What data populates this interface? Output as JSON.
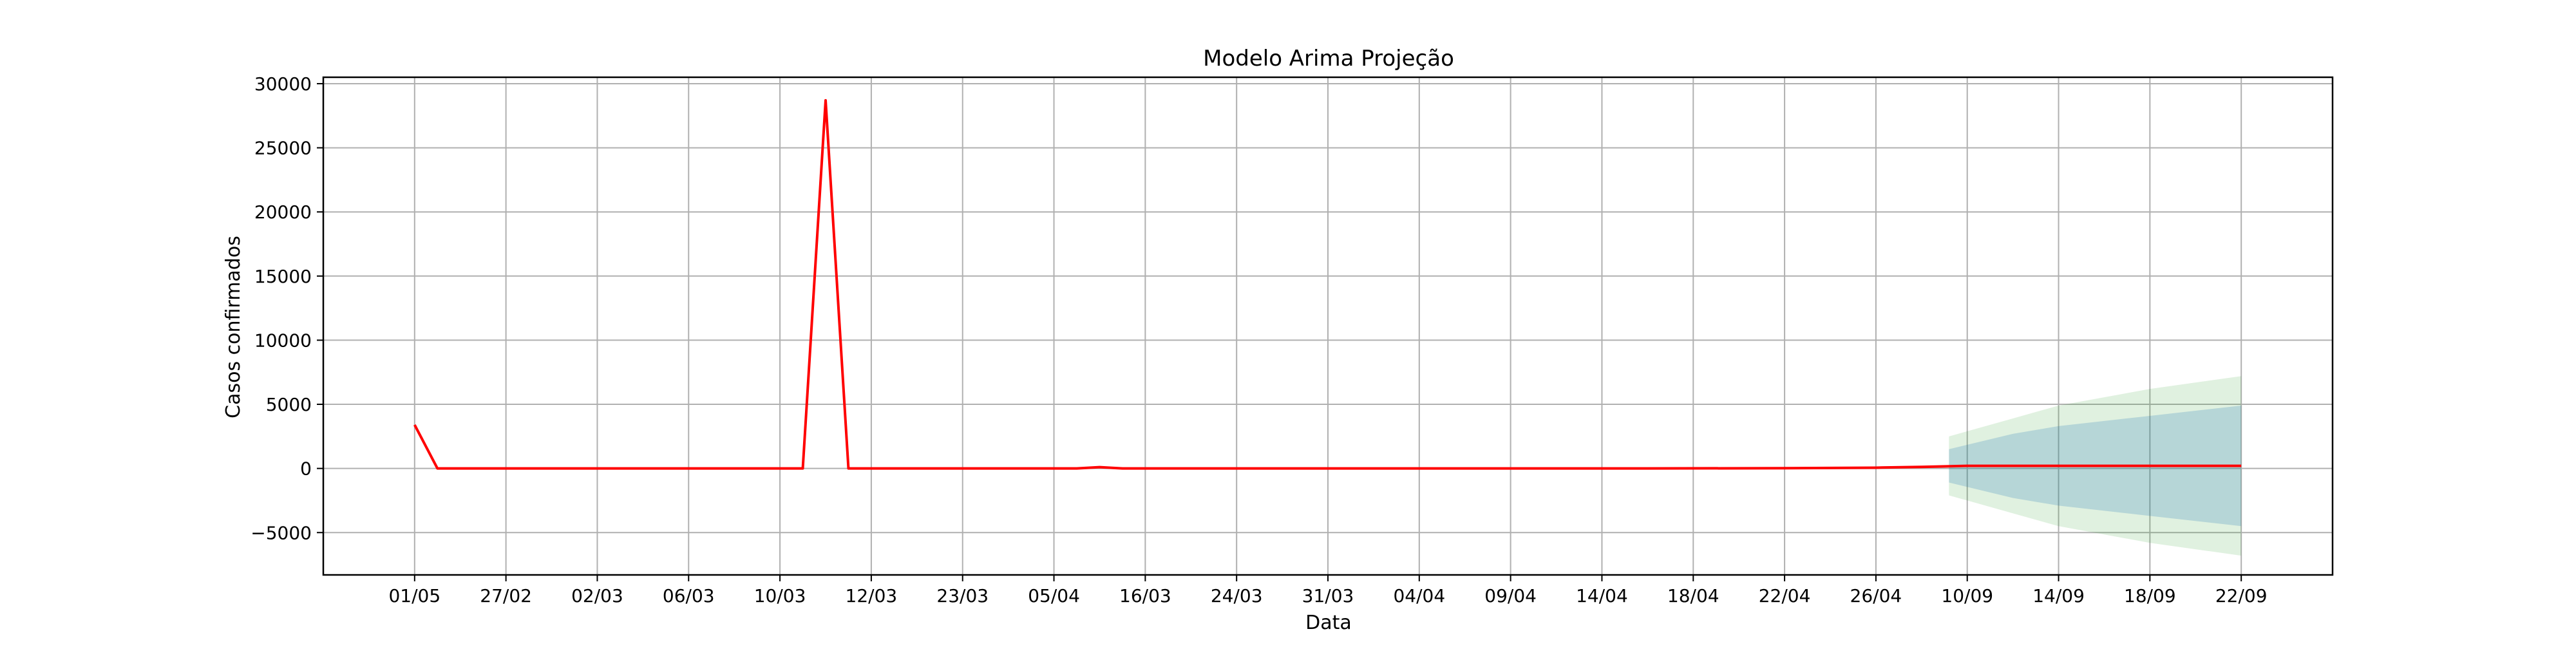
{
  "chart_data": {
    "type": "line",
    "title": "Modelo Arima Projeção",
    "xlabel": "Data",
    "ylabel": "Casos confirmados",
    "categories": [
      "01/05",
      "27/02",
      "02/03",
      "06/03",
      "10/03",
      "12/03",
      "23/03",
      "05/04",
      "16/03",
      "24/03",
      "31/03",
      "04/04",
      "09/04",
      "14/04",
      "18/04",
      "22/04",
      "26/04",
      "10/09",
      "14/09",
      "18/09",
      "22/09"
    ],
    "ylim": [
      -8300,
      30500
    ],
    "yticks": [
      -5000,
      0,
      5000,
      10000,
      15000,
      20000,
      25000,
      30000
    ],
    "ytick_labels": [
      "−5000",
      "0",
      "5000",
      "10000",
      "15000",
      "20000",
      "25000",
      "30000"
    ],
    "xlim": [
      -1,
      21
    ],
    "grid": true,
    "colors": {
      "series": "#ff0000",
      "band_outer": "#2ca02c",
      "band_inner": "#1f77b4"
    },
    "series": [
      {
        "x": [
          0,
          0.25,
          4.25,
          4.5,
          4.75,
          5.5,
          7.25,
          7.5,
          7.75,
          13.5,
          15.0,
          16.0,
          16.5,
          17.0,
          18.0,
          19.0,
          20.0
        ],
        "y": [
          3400,
          0,
          0,
          28700,
          0,
          0,
          0,
          100,
          0,
          0,
          20,
          60,
          120,
          200,
          200,
          200,
          200
        ]
      }
    ],
    "confidence_bands": [
      {
        "level": "outer",
        "x": [
          16.8,
          17.5,
          18.0,
          19.0,
          20.0
        ],
        "upper": [
          2500,
          3900,
          4900,
          6200,
          7200
        ],
        "lower": [
          -2100,
          -3500,
          -4500,
          -5800,
          -6800
        ]
      },
      {
        "level": "inner",
        "x": [
          16.8,
          17.5,
          18.0,
          19.0,
          20.0
        ],
        "upper": [
          1500,
          2700,
          3300,
          4100,
          4900
        ],
        "lower": [
          -1100,
          -2300,
          -2900,
          -3700,
          -4500
        ]
      }
    ]
  }
}
